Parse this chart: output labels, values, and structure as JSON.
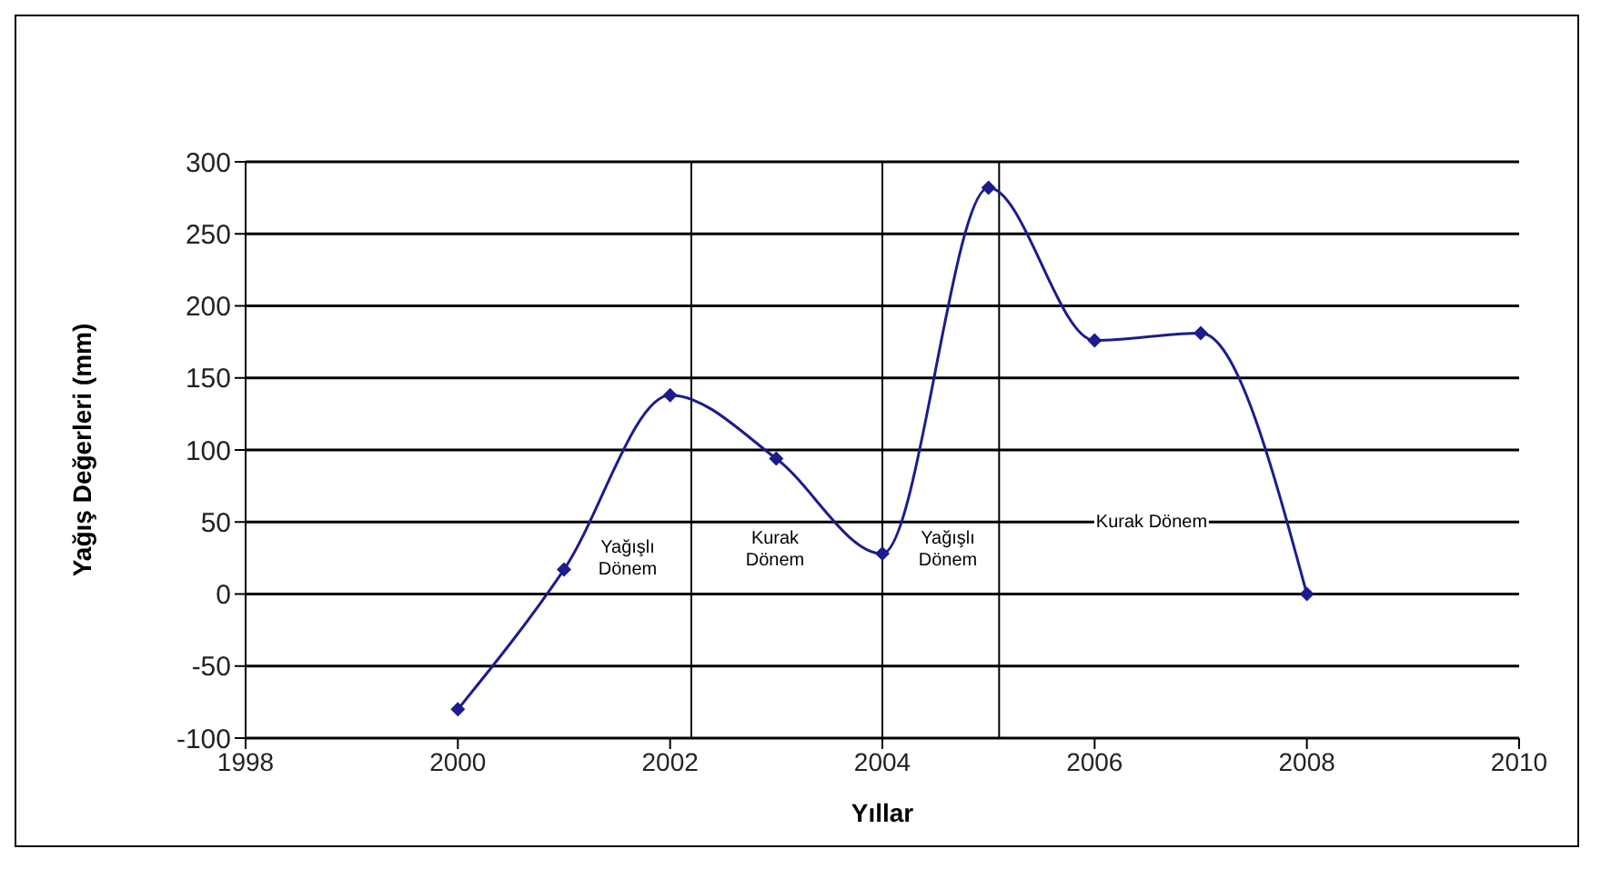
{
  "chart_data": {
    "type": "line",
    "xlabel": "Yıllar",
    "ylabel": "Yağış Değerleri (mm)",
    "x": [
      2000,
      2001,
      2002,
      2003,
      2004,
      2005,
      2006,
      2007,
      2008
    ],
    "series": [
      {
        "color": "#1c1c8c",
        "values": [
          -80,
          17,
          138,
          94,
          28,
          282,
          176,
          181,
          0
        ]
      }
    ],
    "xlim": [
      1998,
      2010
    ],
    "xticks": [
      1998,
      2000,
      2002,
      2004,
      2006,
      2008,
      2010
    ],
    "ylim": [
      -100,
      300
    ],
    "yticks": [
      -100,
      -50,
      0,
      50,
      100,
      150,
      200,
      250,
      300
    ],
    "grid": "y",
    "marker": "diamond",
    "line_style": "solid",
    "ref_lines": [
      {
        "axis": "x",
        "value": 2002.2,
        "color": "#000000"
      },
      {
        "axis": "x",
        "value": 2004,
        "color": "#000000"
      },
      {
        "axis": "x",
        "value": 2005.1,
        "color": "#000000"
      }
    ],
    "annotations": [
      "Yağışlı Dönem",
      "Kurak Dönem",
      "Yağışlı Dönem",
      "Kurak Dönem"
    ]
  }
}
